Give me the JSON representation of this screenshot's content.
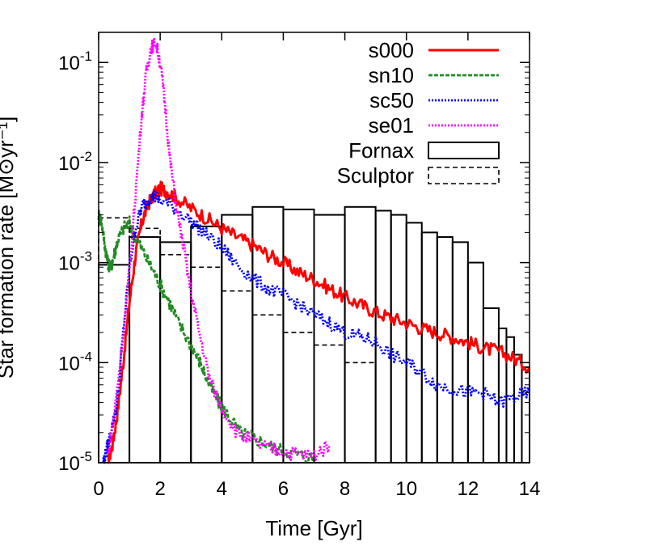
{
  "chart_data": {
    "type": "line",
    "xlabel": "Time [Gyr]",
    "ylabel": "Star formation rate [M⊙yr⁻¹]",
    "xlim": [
      0,
      14
    ],
    "ylim": [
      1e-05,
      0.2
    ],
    "yscale": "log",
    "grid": false,
    "legend_position": "top-right",
    "x_ticks": [
      0,
      2,
      4,
      6,
      8,
      10,
      12,
      14
    ],
    "y_ticks": [
      {
        "value": 0.1,
        "base": "10",
        "exp": "-1"
      },
      {
        "value": 0.01,
        "base": "10",
        "exp": "-2"
      },
      {
        "value": 0.001,
        "base": "10",
        "exp": "-3"
      },
      {
        "value": 0.0001,
        "base": "10",
        "exp": "-4"
      },
      {
        "value": 1e-05,
        "base": "10",
        "exp": "-5"
      }
    ],
    "series": [
      {
        "name": "s000",
        "style": "solid",
        "color": "#ff0000",
        "x": [
          0.3,
          0.45,
          0.6,
          0.8,
          1.0,
          1.2,
          1.4,
          1.6,
          1.8,
          2.0,
          2.2,
          2.5,
          3.0,
          3.5,
          4.0,
          4.5,
          5.0,
          5.5,
          6.0,
          6.5,
          7.0,
          7.5,
          8.0,
          8.5,
          9.0,
          9.5,
          10.0,
          10.5,
          11.0,
          11.5,
          12.0,
          12.5,
          13.0,
          13.5,
          14.0
        ],
        "values": [
          1e-05,
          1.5e-05,
          3e-05,
          0.0001,
          0.0004,
          0.0012,
          0.0025,
          0.0038,
          0.0048,
          0.0055,
          0.0052,
          0.0045,
          0.0035,
          0.0028,
          0.0022,
          0.0018,
          0.0015,
          0.0012,
          0.001,
          0.0008,
          0.00068,
          0.00055,
          0.00045,
          0.00038,
          0.00032,
          0.00028,
          0.00025,
          0.00022,
          0.0002,
          0.00018,
          0.00016,
          0.00014,
          0.00013,
          0.00011,
          9e-05
        ]
      },
      {
        "name": "sn10",
        "style": "dashed",
        "color": "#228b22",
        "x": [
          0.0,
          0.1,
          0.2,
          0.3,
          0.4,
          0.5,
          0.6,
          0.8,
          1.0,
          1.2,
          1.5,
          1.8,
          2.0,
          2.3,
          2.6,
          3.0,
          3.3,
          3.6,
          3.9,
          4.2,
          4.6,
          5.0,
          5.5,
          6.0,
          6.5,
          7.0
        ],
        "values": [
          0.003,
          0.0025,
          0.0015,
          0.001,
          0.0009,
          0.0012,
          0.0016,
          0.0022,
          0.0025,
          0.0018,
          0.0012,
          0.0008,
          0.0006,
          0.0004,
          0.00025,
          0.00015,
          0.0001,
          6e-05,
          4e-05,
          3e-05,
          2e-05,
          1.8e-05,
          1.5e-05,
          1.3e-05,
          1.2e-05,
          1.1e-05
        ]
      },
      {
        "name": "sc50",
        "style": "dotted",
        "color": "#0000ff",
        "x": [
          0.15,
          0.25,
          0.4,
          0.6,
          0.8,
          1.0,
          1.2,
          1.4,
          1.6,
          1.8,
          2.0,
          2.5,
          3.0,
          3.5,
          4.0,
          4.5,
          5.0,
          5.5,
          6.0,
          6.5,
          7.0,
          7.5,
          8.0,
          8.5,
          9.0,
          9.5,
          10.0,
          10.5,
          11.0,
          11.5,
          12.0,
          12.5,
          13.0,
          13.5,
          14.0
        ],
        "values": [
          1e-05,
          1.3e-05,
          2e-05,
          4e-05,
          0.0002,
          0.0009,
          0.0022,
          0.0036,
          0.0042,
          0.0046,
          0.0042,
          0.0035,
          0.0026,
          0.0019,
          0.0014,
          0.00095,
          0.0007,
          0.00055,
          0.00047,
          0.00038,
          0.0003,
          0.00025,
          0.0002,
          0.00018,
          0.00016,
          0.00012,
          0.0001,
          8e-05,
          6e-05,
          5.5e-05,
          5e-05,
          5e-05,
          4e-05,
          4.5e-05,
          5e-05
        ]
      },
      {
        "name": "se01",
        "style": "dotted",
        "color": "#ff00ff",
        "x": [
          0.3,
          0.5,
          0.7,
          1.0,
          1.2,
          1.4,
          1.55,
          1.7,
          1.85,
          2.0,
          2.15,
          2.3,
          2.5,
          2.8,
          3.0,
          3.3,
          3.6,
          4.0,
          4.5,
          5.0,
          5.5,
          6.0,
          6.5,
          7.0,
          7.5
        ],
        "values": [
          1.2e-05,
          3e-05,
          0.0001,
          0.0008,
          0.005,
          0.03,
          0.08,
          0.14,
          0.16,
          0.1,
          0.04,
          0.012,
          0.004,
          0.0012,
          0.0005,
          0.00018,
          7e-05,
          3.5e-05,
          2e-05,
          1.6e-05,
          1.4e-05,
          1.3e-05,
          1.2e-05,
          1.2e-05,
          1.5e-05
        ]
      }
    ],
    "histograms": [
      {
        "name": "Fornax",
        "style": "solid",
        "bin_width": 1,
        "bin_starts": [
          0,
          1,
          2,
          3,
          4,
          5,
          6,
          7,
          8,
          9,
          9.5,
          10,
          10.5,
          11,
          11.5,
          12,
          12.5,
          13,
          13.25,
          13.5,
          13.75
        ],
        "bin_widths": [
          1,
          1,
          1,
          1,
          1,
          1,
          1,
          1,
          1,
          0.5,
          0.5,
          0.5,
          0.5,
          0.5,
          0.5,
          0.5,
          0.5,
          0.25,
          0.25,
          0.25,
          0.25
        ],
        "values": [
          0.00095,
          0.0018,
          0.0016,
          0.0023,
          0.003,
          0.0036,
          0.0034,
          0.003,
          0.0036,
          0.0033,
          0.003,
          0.0025,
          0.002,
          0.0018,
          0.0016,
          0.001,
          0.00035,
          0.00022,
          0.00018,
          0.00012,
          9e-05
        ]
      },
      {
        "name": "Sculptor",
        "style": "dashed",
        "bin_starts": [
          0,
          1,
          2,
          3,
          4,
          5,
          6,
          7,
          8
        ],
        "bin_widths": [
          1,
          1,
          1,
          1,
          1,
          1,
          1,
          1,
          1
        ],
        "values": [
          0.0028,
          0.0022,
          0.0012,
          0.0009,
          0.00052,
          0.0003,
          0.0002,
          0.00015,
          0.0001
        ]
      }
    ]
  }
}
